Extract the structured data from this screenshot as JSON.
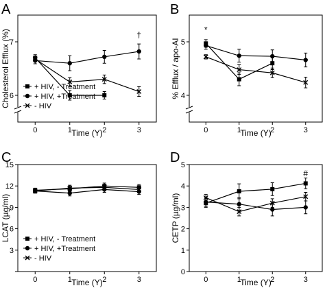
{
  "legend_labels": [
    "+ HIV, - Treatment",
    "+ HIV, +Treatment",
    "- HIV"
  ],
  "chart_data": [
    {
      "panel": "A",
      "type": "line",
      "x": [
        0,
        1,
        2,
        3
      ],
      "xticks": [
        "0",
        "1",
        "2",
        "3"
      ],
      "xlabel": "Time (Y)",
      "ylabel": "Cholesterol Efflux (%)",
      "ylim": [
        5.5,
        7.5
      ],
      "yticks": [
        6,
        7
      ],
      "ytick_labels": [
        "6",
        "7"
      ],
      "axis_break": true,
      "legend": "lower-left",
      "series": [
        {
          "name": "+ HIV, - Treatment",
          "marker": "square",
          "values": [
            6.7,
            6.0,
            6.0,
            null
          ],
          "err": [
            0.06,
            0.09,
            0.07,
            null
          ]
        },
        {
          "name": "+ HIV, +Treatment",
          "marker": "circle",
          "values": [
            6.65,
            6.6,
            6.72,
            6.82
          ],
          "err": [
            0.06,
            0.14,
            0.12,
            0.14
          ]
        },
        {
          "name": "- HIV",
          "marker": "x",
          "values": [
            6.68,
            6.25,
            6.3,
            6.07
          ],
          "err": [
            0.05,
            0.08,
            0.08,
            0.09
          ]
        }
      ],
      "annotations": [
        {
          "text": "†",
          "x": 3,
          "y": 7.08
        }
      ]
    },
    {
      "panel": "B",
      "type": "line",
      "x": [
        0,
        1,
        2,
        3
      ],
      "xticks": [
        "0",
        "1",
        "2",
        "3"
      ],
      "xlabel": "Time (Y)",
      "ylabel": "% Efflux / apo-AI",
      "ylim": [
        3.5,
        5.5
      ],
      "yticks": [
        4,
        5
      ],
      "ytick_labels": [
        "4",
        "5"
      ],
      "axis_break": true,
      "legend": "none",
      "series": [
        {
          "name": "+ HIV, - Treatment",
          "marker": "square",
          "values": [
            4.97,
            4.3,
            4.6,
            null
          ],
          "err": [
            0.07,
            0.12,
            0.12,
            null
          ]
        },
        {
          "name": "+ HIV, +Treatment",
          "marker": "circle",
          "values": [
            4.93,
            4.74,
            4.73,
            4.66
          ],
          "err": [
            0.07,
            0.12,
            0.12,
            0.13
          ]
        },
        {
          "name": "- HIV",
          "marker": "x",
          "values": [
            4.72,
            4.48,
            4.42,
            4.24
          ],
          "err": [
            0.04,
            0.09,
            0.09,
            0.1
          ]
        }
      ],
      "annotations": [
        {
          "text": "*",
          "x": 0,
          "y": 5.17
        }
      ]
    },
    {
      "panel": "C",
      "type": "line",
      "x": [
        0,
        1,
        2,
        3
      ],
      "xticks": [
        "0",
        "1",
        "2",
        "3"
      ],
      "xlabel": "Time (Y)",
      "ylabel": "LCAT (µg/ml)",
      "ylim": [
        0,
        15
      ],
      "yticks": [
        0,
        3,
        6,
        9,
        12,
        15
      ],
      "ytick_labels": [
        "",
        "3",
        "6",
        "9",
        "12",
        "15"
      ],
      "axis_break": false,
      "legend": "lower-left",
      "series": [
        {
          "name": "+ HIV, - Treatment",
          "marker": "square",
          "values": [
            11.4,
            11.6,
            12.0,
            11.8
          ],
          "err": [
            0.3,
            0.4,
            0.4,
            0.4
          ]
        },
        {
          "name": "+ HIV, +Treatment",
          "marker": "circle",
          "values": [
            11.3,
            11.0,
            11.5,
            11.2
          ],
          "err": [
            0.3,
            0.4,
            0.4,
            0.4
          ]
        },
        {
          "name": "- HIV",
          "marker": "x",
          "values": [
            11.3,
            11.7,
            11.8,
            11.5
          ],
          "err": [
            0.3,
            0.4,
            0.4,
            0.4
          ]
        }
      ],
      "annotations": []
    },
    {
      "panel": "D",
      "type": "line",
      "x": [
        0,
        1,
        2,
        3
      ],
      "xticks": [
        "0",
        "1",
        "2",
        "3"
      ],
      "xlabel": "Time (Y)",
      "ylabel": "CETP (µg/ml)",
      "ylim": [
        0,
        5
      ],
      "yticks": [
        0,
        1,
        2,
        3,
        4,
        5
      ],
      "ytick_labels": [
        "0",
        "1",
        "2",
        "3",
        "4",
        "5"
      ],
      "axis_break": false,
      "legend": "none",
      "series": [
        {
          "name": "+ HIV, - Treatment",
          "marker": "square",
          "values": [
            3.2,
            3.75,
            3.85,
            4.12
          ],
          "err": [
            0.2,
            0.35,
            0.3,
            0.25
          ]
        },
        {
          "name": "+ HIV, +Treatment",
          "marker": "circle",
          "values": [
            3.25,
            3.15,
            2.9,
            3.0
          ],
          "err": [
            0.2,
            0.3,
            0.3,
            0.3
          ]
        },
        {
          "name": "- HIV",
          "marker": "x",
          "values": [
            3.45,
            2.8,
            3.2,
            3.5
          ],
          "err": [
            0.15,
            0.2,
            0.2,
            0.2
          ]
        }
      ],
      "annotations": [
        {
          "text": "#",
          "x": 3,
          "y": 4.45
        }
      ]
    }
  ]
}
